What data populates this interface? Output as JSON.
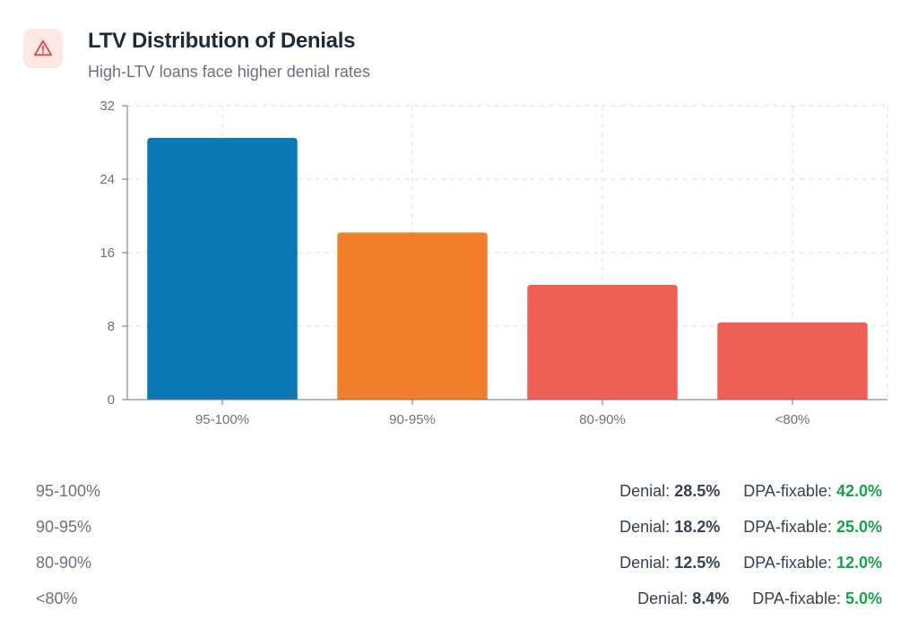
{
  "header": {
    "title": "LTV Distribution of Denials",
    "subtitle": "High-LTV loans face higher denial rates",
    "icon": "alert-triangle-icon",
    "icon_color": "#e5483c",
    "icon_bg": "#fde8e6"
  },
  "chart_data": {
    "type": "bar",
    "categories": [
      "95-100%",
      "90-95%",
      "80-90%",
      "<80%"
    ],
    "values": [
      28.5,
      18.2,
      12.5,
      8.4
    ],
    "colors": [
      "#0b78b3",
      "#f07e2a",
      "#ee6055",
      "#ee6055"
    ],
    "ylim": [
      0,
      32
    ],
    "yticks": [
      "0",
      "8",
      "16",
      "24",
      "32"
    ],
    "grid": true,
    "title": "",
    "xlabel": "",
    "ylabel": ""
  },
  "table": {
    "denial_label": "Denial:",
    "dpa_label": "DPA-fixable:",
    "rows": [
      {
        "label": "95-100%",
        "denial": "28.5%",
        "dpa": "42.0%"
      },
      {
        "label": "90-95%",
        "denial": "18.2%",
        "dpa": "25.0%"
      },
      {
        "label": "80-90%",
        "denial": "12.5%",
        "dpa": "12.0%"
      },
      {
        "label": "<80%",
        "denial": "8.4%",
        "dpa": "5.0%"
      }
    ]
  }
}
